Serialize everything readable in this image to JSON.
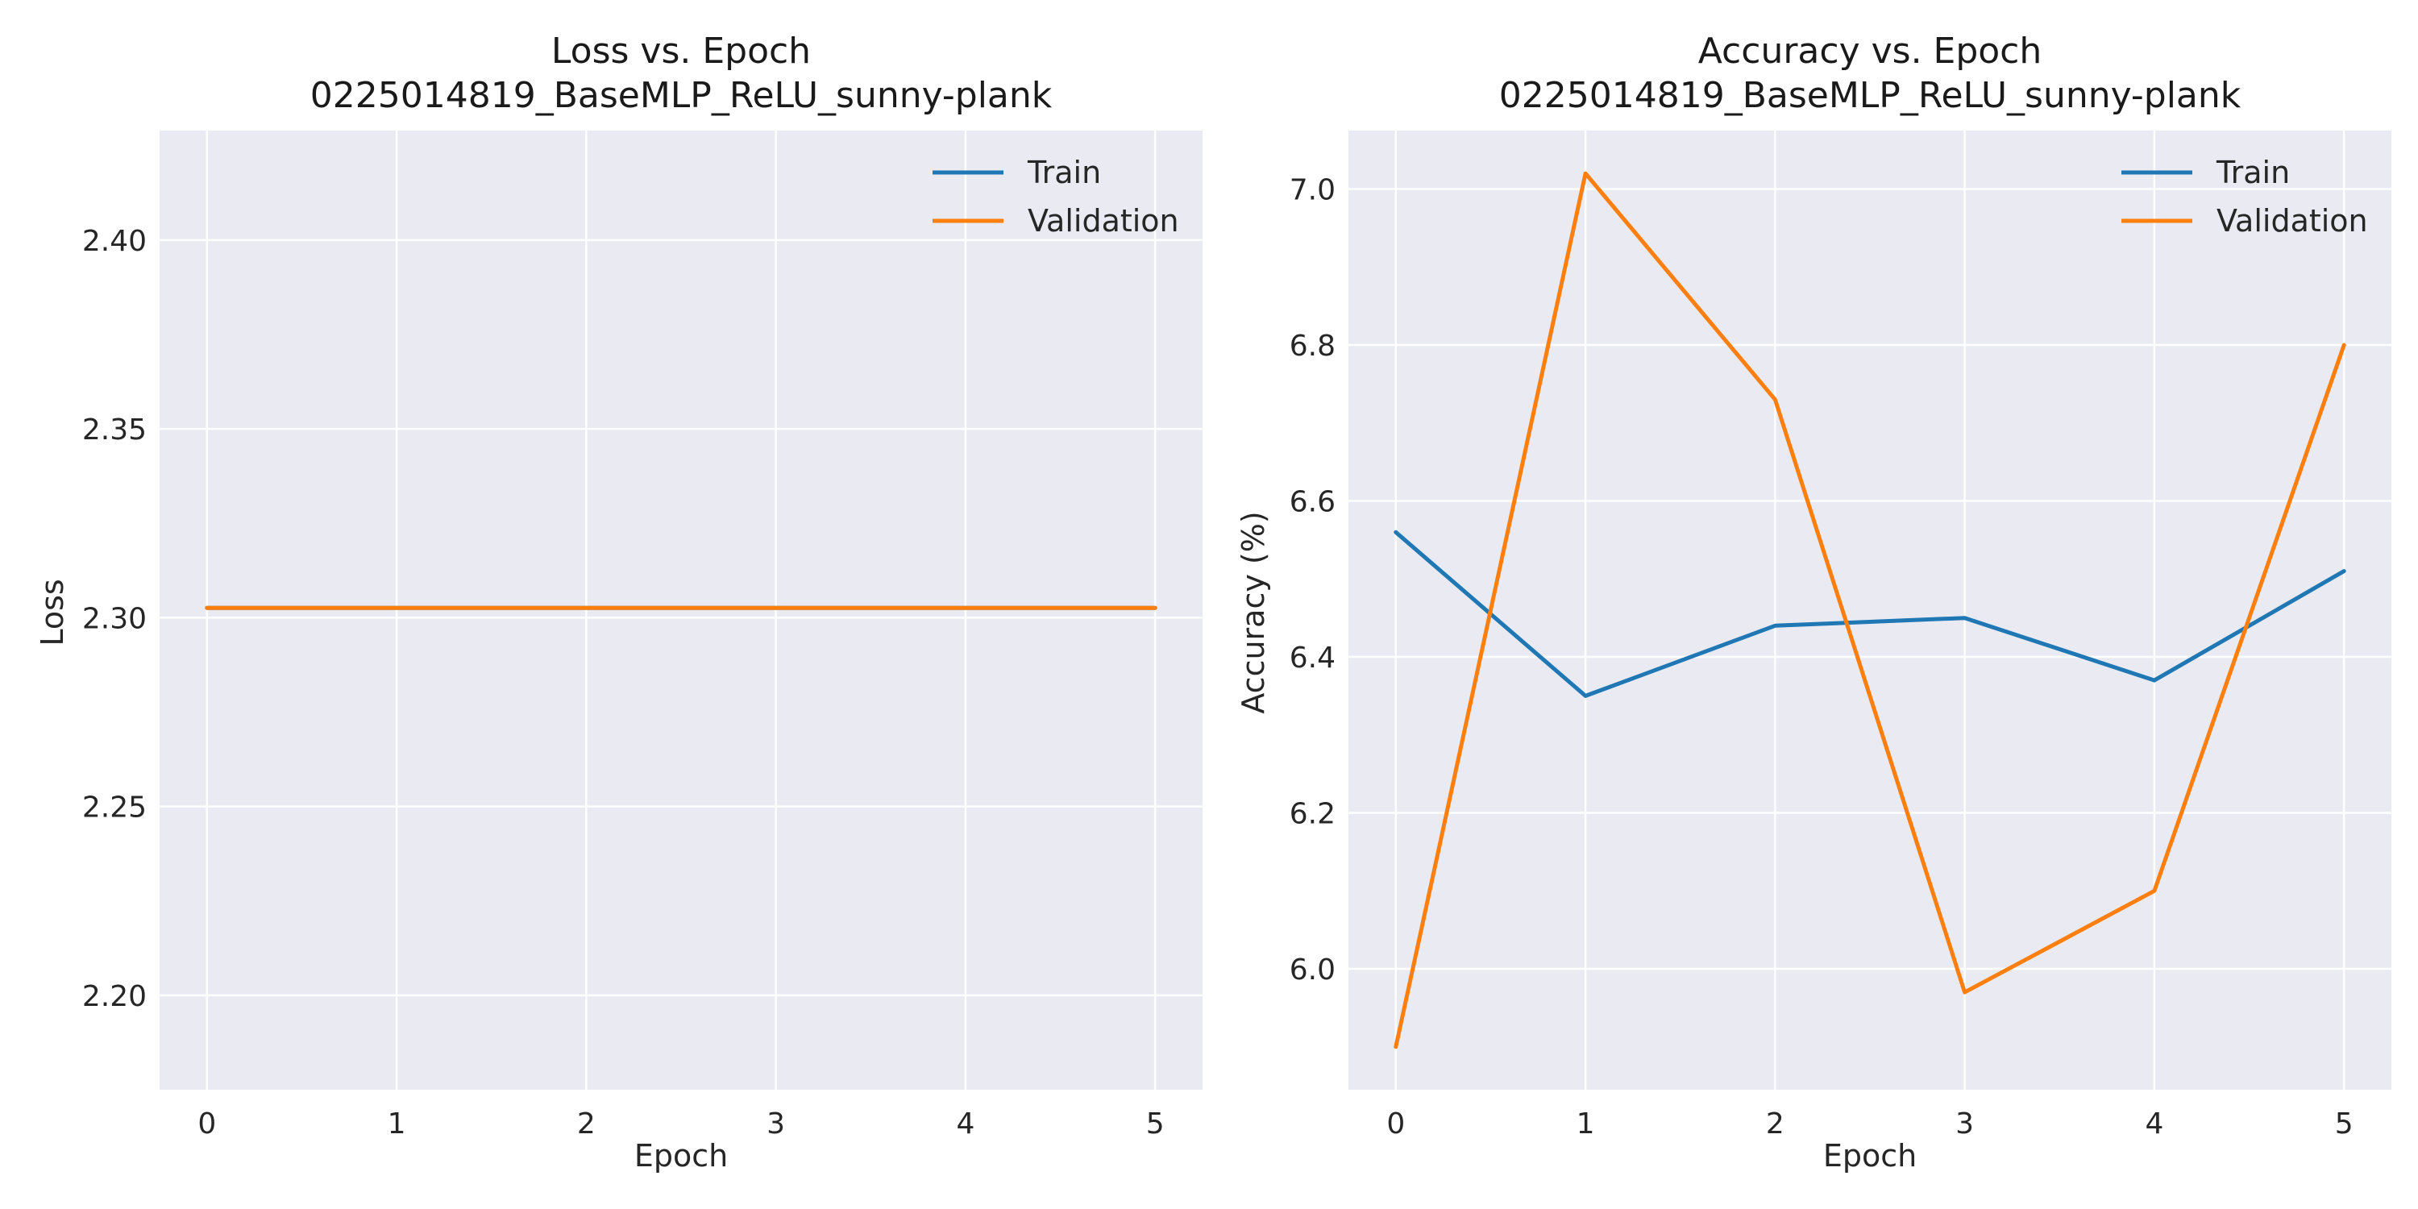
{
  "chart_data": [
    {
      "type": "line",
      "title": "Loss vs. Epoch",
      "subtitle": "0225014819_BaseMLP_ReLU_sunny-plank",
      "xlabel": "Epoch",
      "ylabel": "Loss",
      "x": [
        0,
        1,
        2,
        3,
        4,
        5
      ],
      "xticks": [
        0,
        1,
        2,
        3,
        4,
        5
      ],
      "xlim": [
        -0.25,
        5.25
      ],
      "yticks": [
        2.2,
        2.25,
        2.3,
        2.35,
        2.4
      ],
      "ylim": [
        2.175,
        2.429
      ],
      "ytick_format": "2dp",
      "grid": true,
      "legend_position": "top-right",
      "series": [
        {
          "name": "Train",
          "color": "#1f77b4",
          "values": [
            2.3026,
            2.3026,
            2.3026,
            2.3026,
            2.3026,
            2.3026
          ]
        },
        {
          "name": "Validation",
          "color": "#ff7f0e",
          "values": [
            2.3026,
            2.3026,
            2.3026,
            2.3026,
            2.3026,
            2.3026
          ]
        }
      ]
    },
    {
      "type": "line",
      "title": "Accuracy vs. Epoch",
      "subtitle": "0225014819_BaseMLP_ReLU_sunny-plank",
      "xlabel": "Epoch",
      "ylabel": "Accuracy (%)",
      "x": [
        0,
        1,
        2,
        3,
        4,
        5
      ],
      "xticks": [
        0,
        1,
        2,
        3,
        4,
        5
      ],
      "xlim": [
        -0.25,
        5.25
      ],
      "yticks": [
        6.0,
        6.2,
        6.4,
        6.6,
        6.8,
        7.0
      ],
      "ylim": [
        5.845,
        7.075
      ],
      "ytick_format": "1dp",
      "grid": true,
      "legend_position": "top-right",
      "series": [
        {
          "name": "Train",
          "color": "#1f77b4",
          "values": [
            6.56,
            6.35,
            6.44,
            6.45,
            6.37,
            6.51
          ]
        },
        {
          "name": "Validation",
          "color": "#ff7f0e",
          "values": [
            5.9,
            7.02,
            6.73,
            5.97,
            6.1,
            6.8
          ]
        }
      ]
    }
  ]
}
